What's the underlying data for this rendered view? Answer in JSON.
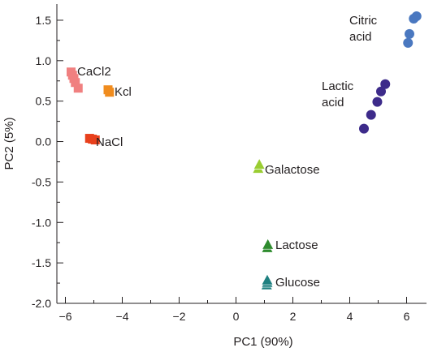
{
  "chart_data": {
    "type": "scatter",
    "title": "",
    "xlabel": "PC1 (90%)",
    "ylabel": "PC2 (5%)",
    "xlim": [
      -6.3,
      6.7
    ],
    "ylim": [
      -2.0,
      1.7
    ],
    "x_ticks": [
      -6,
      -4,
      -2,
      0,
      2,
      4,
      6
    ],
    "x_tick_labels": [
      "−6",
      "−4",
      "−2",
      "0",
      "2",
      "4",
      "6"
    ],
    "y_ticks": [
      1.5,
      1.0,
      0.5,
      0.0,
      -0.5,
      -1.0,
      -1.5,
      -2.0
    ],
    "y_tick_labels": [
      "1.5",
      "1.0",
      "0.5",
      "0.0",
      "-0.5",
      "-1.0",
      "-1.5",
      "-2.0"
    ],
    "grid": false,
    "legend": "none",
    "series": [
      {
        "label_lines": [
          "CaCl2"
        ],
        "marker": "square",
        "color": "#f08080",
        "points": [
          [
            -5.8,
            0.86
          ],
          [
            -5.75,
            0.82
          ],
          [
            -5.7,
            0.78
          ],
          [
            -5.65,
            0.73
          ],
          [
            -5.55,
            0.66
          ]
        ]
      },
      {
        "label_lines": [
          "Kcl"
        ],
        "marker": "square",
        "color": "#f08c1e",
        "points": [
          [
            -4.5,
            0.64
          ],
          [
            -4.45,
            0.61
          ]
        ]
      },
      {
        "label_lines": [
          "NaCl"
        ],
        "marker": "square",
        "color": "#e8401c",
        "points": [
          [
            -5.15,
            0.04
          ],
          [
            -5.05,
            0.03
          ],
          [
            -4.95,
            0.02
          ]
        ]
      },
      {
        "label_lines": [
          "Citric",
          "acid"
        ],
        "marker": "circle",
        "color": "#4a78c0",
        "points": [
          [
            6.35,
            1.55
          ],
          [
            6.25,
            1.52
          ],
          [
            6.1,
            1.33
          ],
          [
            6.05,
            1.22
          ]
        ]
      },
      {
        "label_lines": [
          "Lactic",
          "acid"
        ],
        "marker": "circle",
        "color": "#3d2b8a",
        "points": [
          [
            5.25,
            0.71
          ],
          [
            5.1,
            0.62
          ],
          [
            4.97,
            0.49
          ],
          [
            4.75,
            0.33
          ],
          [
            4.5,
            0.16
          ]
        ]
      },
      {
        "label_lines": [
          "Galactose"
        ],
        "marker": "triangle",
        "color": "#9acd32",
        "points": [
          [
            0.78,
            -0.33
          ],
          [
            0.82,
            -0.28
          ]
        ]
      },
      {
        "label_lines": [
          "Lactose"
        ],
        "marker": "triangle",
        "color": "#2e8b2e",
        "points": [
          [
            1.1,
            -1.31
          ],
          [
            1.12,
            -1.27
          ]
        ]
      },
      {
        "label_lines": [
          "Glucose"
        ],
        "marker": "triangle",
        "color": "#1e8080",
        "points": [
          [
            1.08,
            -1.77
          ],
          [
            1.1,
            -1.74
          ],
          [
            1.1,
            -1.71
          ]
        ]
      }
    ]
  }
}
